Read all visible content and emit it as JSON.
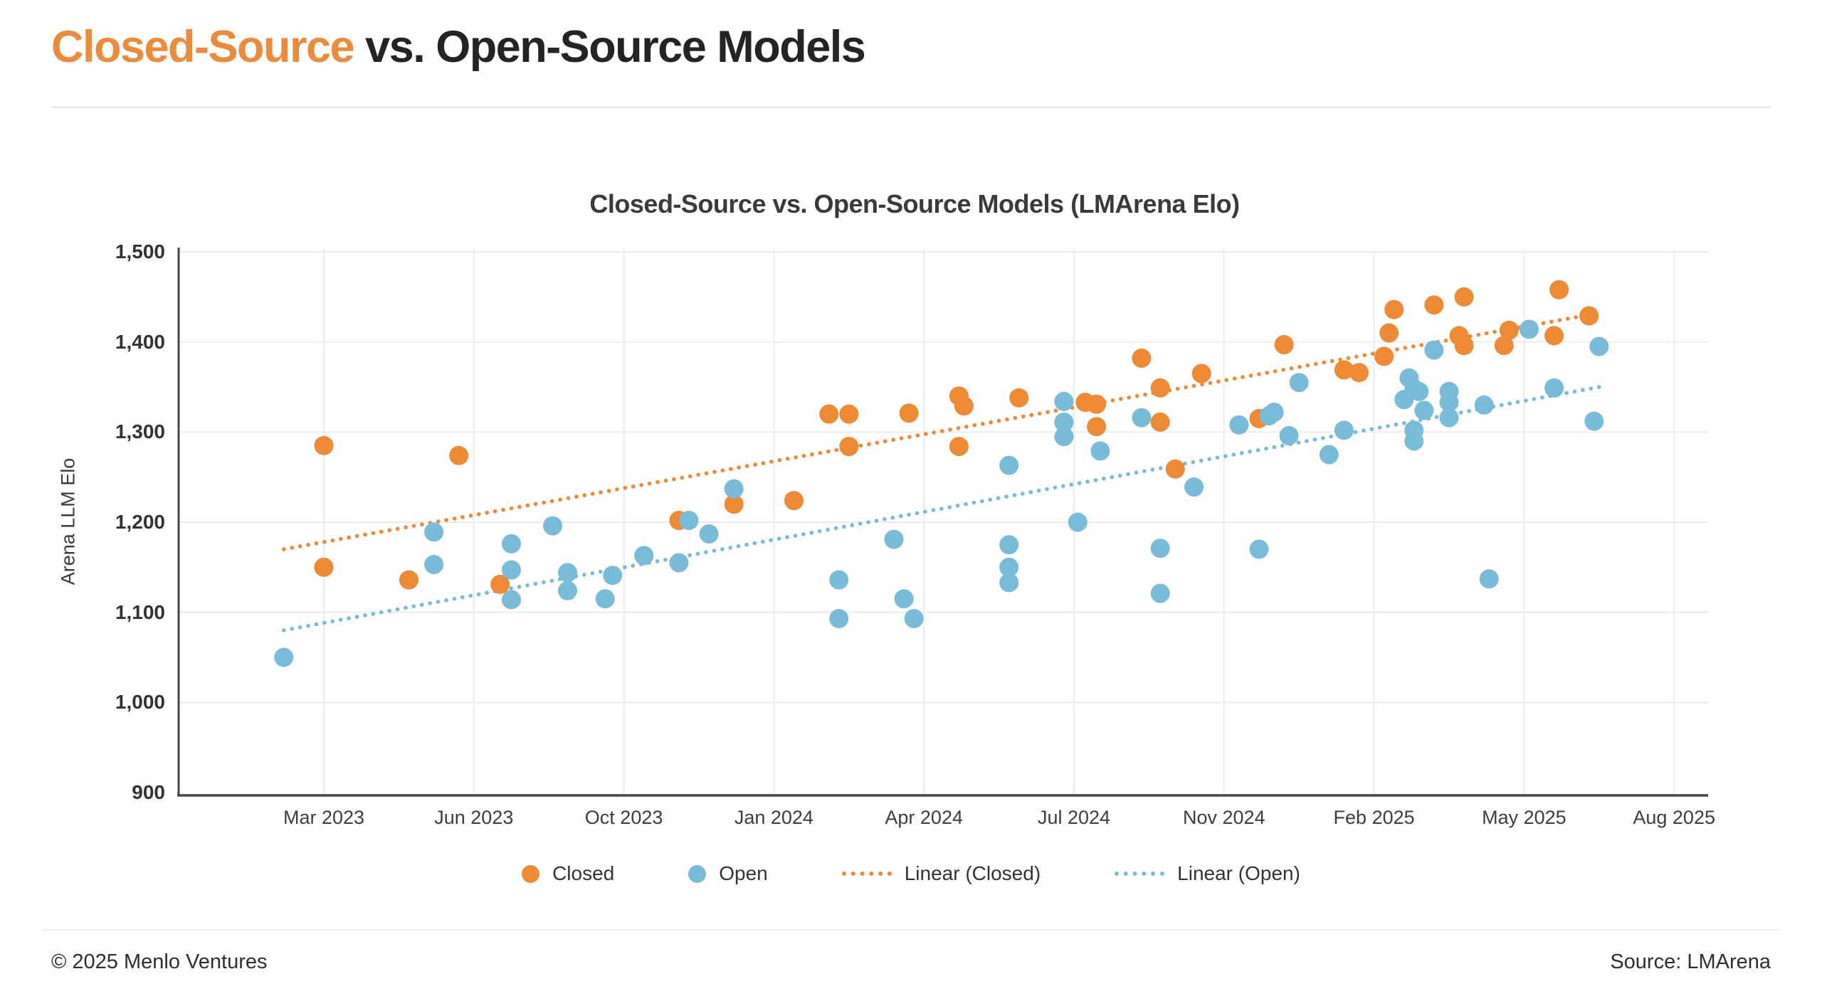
{
  "page": {
    "title_highlight": "Closed-Source",
    "title_rest": " vs. Open-Source Models",
    "footer_left": "© 2025 Menlo Ventures",
    "footer_right": "Source: LMArena"
  },
  "colors": {
    "accent_orange": "#ED8A33",
    "accent_blue": "#79BCD9",
    "title_orange": "#EE8B3B",
    "axis_line": "#474747",
    "gridline": "#ECECEC",
    "text_dark": "#333333"
  },
  "chart_data": {
    "type": "scatter",
    "title": "Closed-Source vs. Open-Source Models (LMArena Elo)",
    "xlabel": "",
    "ylabel": "Arena LLM Elo",
    "x_unit": "months since Jan 2023",
    "ylim": [
      900,
      1500
    ],
    "grid": true,
    "legend_position": "bottom",
    "y_ticks": [
      {
        "label": "1,500",
        "value": 1500
      },
      {
        "label": "1,400",
        "value": 1400
      },
      {
        "label": "1,300",
        "value": 1300
      },
      {
        "label": "1,200",
        "value": 1200
      },
      {
        "label": "1,100",
        "value": 1100
      },
      {
        "label": "1,000",
        "value": 1000
      },
      {
        "label": "900",
        "value": 900
      }
    ],
    "x_ticks": [
      {
        "label": "Mar 2023",
        "m": 2
      },
      {
        "label": "Jun 2023",
        "m": 5
      },
      {
        "label": "Oct 2023",
        "m": 9
      },
      {
        "label": "Jan 2024",
        "m": 12
      },
      {
        "label": "Apr 2024",
        "m": 15
      },
      {
        "label": "Jul 2024",
        "m": 18
      },
      {
        "label": "Nov 2024",
        "m": 22
      },
      {
        "label": "Feb 2025",
        "m": 25
      },
      {
        "label": "May 2025",
        "m": 28
      },
      {
        "label": "Aug 2025",
        "m": 31
      }
    ],
    "legend": [
      {
        "label": "Closed",
        "type": "dot",
        "color": "#ED8A33"
      },
      {
        "label": "Open",
        "type": "dot",
        "color": "#79BCD9"
      },
      {
        "label": "Linear (Closed)",
        "type": "dotted-line",
        "color": "#ED8A33"
      },
      {
        "label": "Linear (Open)",
        "type": "dotted-line",
        "color": "#79BCD9"
      }
    ],
    "series": [
      {
        "name": "Closed",
        "color": "#ED8A33",
        "points": [
          [
            2.0,
            1285
          ],
          [
            4.7,
            1274
          ],
          [
            2.0,
            1150
          ],
          [
            3.7,
            1136
          ],
          [
            5.7,
            1131
          ],
          [
            10.1,
            1202
          ],
          [
            11.2,
            1220
          ],
          [
            12.4,
            1224
          ],
          [
            13.1,
            1320
          ],
          [
            13.5,
            1320
          ],
          [
            13.5,
            1284
          ],
          [
            14.7,
            1321
          ],
          [
            15.7,
            1340
          ],
          [
            15.8,
            1329
          ],
          [
            15.7,
            1284
          ],
          [
            16.9,
            1338
          ],
          [
            18.3,
            1333
          ],
          [
            18.6,
            1331
          ],
          [
            18.6,
            1306
          ],
          [
            19.8,
            1382
          ],
          [
            20.3,
            1349
          ],
          [
            20.3,
            1311
          ],
          [
            21.4,
            1365
          ],
          [
            20.7,
            1259
          ],
          [
            22.7,
            1315
          ],
          [
            23.2,
            1397
          ],
          [
            24.4,
            1369
          ],
          [
            24.7,
            1366
          ],
          [
            25.2,
            1384
          ],
          [
            25.3,
            1410
          ],
          [
            25.4,
            1436
          ],
          [
            26.2,
            1441
          ],
          [
            26.8,
            1450
          ],
          [
            26.7,
            1407
          ],
          [
            26.8,
            1396
          ],
          [
            27.7,
            1413
          ],
          [
            27.6,
            1396
          ],
          [
            28.6,
            1407
          ],
          [
            28.7,
            1458
          ],
          [
            29.3,
            1429
          ]
        ]
      },
      {
        "name": "Open",
        "color": "#79BCD9",
        "points": [
          [
            1.2,
            1050
          ],
          [
            4.2,
            1189
          ],
          [
            4.2,
            1153
          ],
          [
            6.0,
            1176
          ],
          [
            6.0,
            1147
          ],
          [
            6.0,
            1114
          ],
          [
            7.1,
            1196
          ],
          [
            7.5,
            1144
          ],
          [
            7.5,
            1124
          ],
          [
            8.5,
            1115
          ],
          [
            8.7,
            1141
          ],
          [
            9.4,
            1163
          ],
          [
            10.1,
            1155
          ],
          [
            10.3,
            1202
          ],
          [
            10.7,
            1187
          ],
          [
            11.2,
            1237
          ],
          [
            13.3,
            1136
          ],
          [
            13.3,
            1093
          ],
          [
            14.4,
            1181
          ],
          [
            14.6,
            1115
          ],
          [
            14.8,
            1093
          ],
          [
            16.7,
            1263
          ],
          [
            16.7,
            1175
          ],
          [
            16.7,
            1150
          ],
          [
            16.7,
            1133
          ],
          [
            17.8,
            1334
          ],
          [
            17.8,
            1311
          ],
          [
            17.8,
            1295
          ],
          [
            18.7,
            1279
          ],
          [
            18.1,
            1200
          ],
          [
            19.8,
            1316
          ],
          [
            20.3,
            1171
          ],
          [
            20.3,
            1121
          ],
          [
            21.2,
            1239
          ],
          [
            22.3,
            1308
          ],
          [
            22.9,
            1318
          ],
          [
            23.0,
            1322
          ],
          [
            23.5,
            1355
          ],
          [
            23.3,
            1296
          ],
          [
            22.7,
            1170
          ],
          [
            24.1,
            1275
          ],
          [
            24.4,
            1302
          ],
          [
            26.2,
            1391
          ],
          [
            25.7,
            1360
          ],
          [
            25.8,
            1348
          ],
          [
            25.9,
            1345
          ],
          [
            25.6,
            1336
          ],
          [
            26.0,
            1324
          ],
          [
            25.8,
            1302
          ],
          [
            25.8,
            1290
          ],
          [
            26.5,
            1345
          ],
          [
            26.5,
            1333
          ],
          [
            26.5,
            1316
          ],
          [
            27.2,
            1330
          ],
          [
            28.1,
            1414
          ],
          [
            28.6,
            1349
          ],
          [
            27.3,
            1137
          ],
          [
            29.5,
            1395
          ],
          [
            29.4,
            1312
          ]
        ]
      }
    ],
    "trendlines": [
      {
        "name": "Linear (Closed)",
        "color": "#ED8A33",
        "start": [
          1.2,
          1170
        ],
        "end": [
          29.5,
          1432
        ]
      },
      {
        "name": "Linear (Open)",
        "color": "#79BCD9",
        "start": [
          1.2,
          1080
        ],
        "end": [
          29.5,
          1350
        ]
      }
    ]
  }
}
